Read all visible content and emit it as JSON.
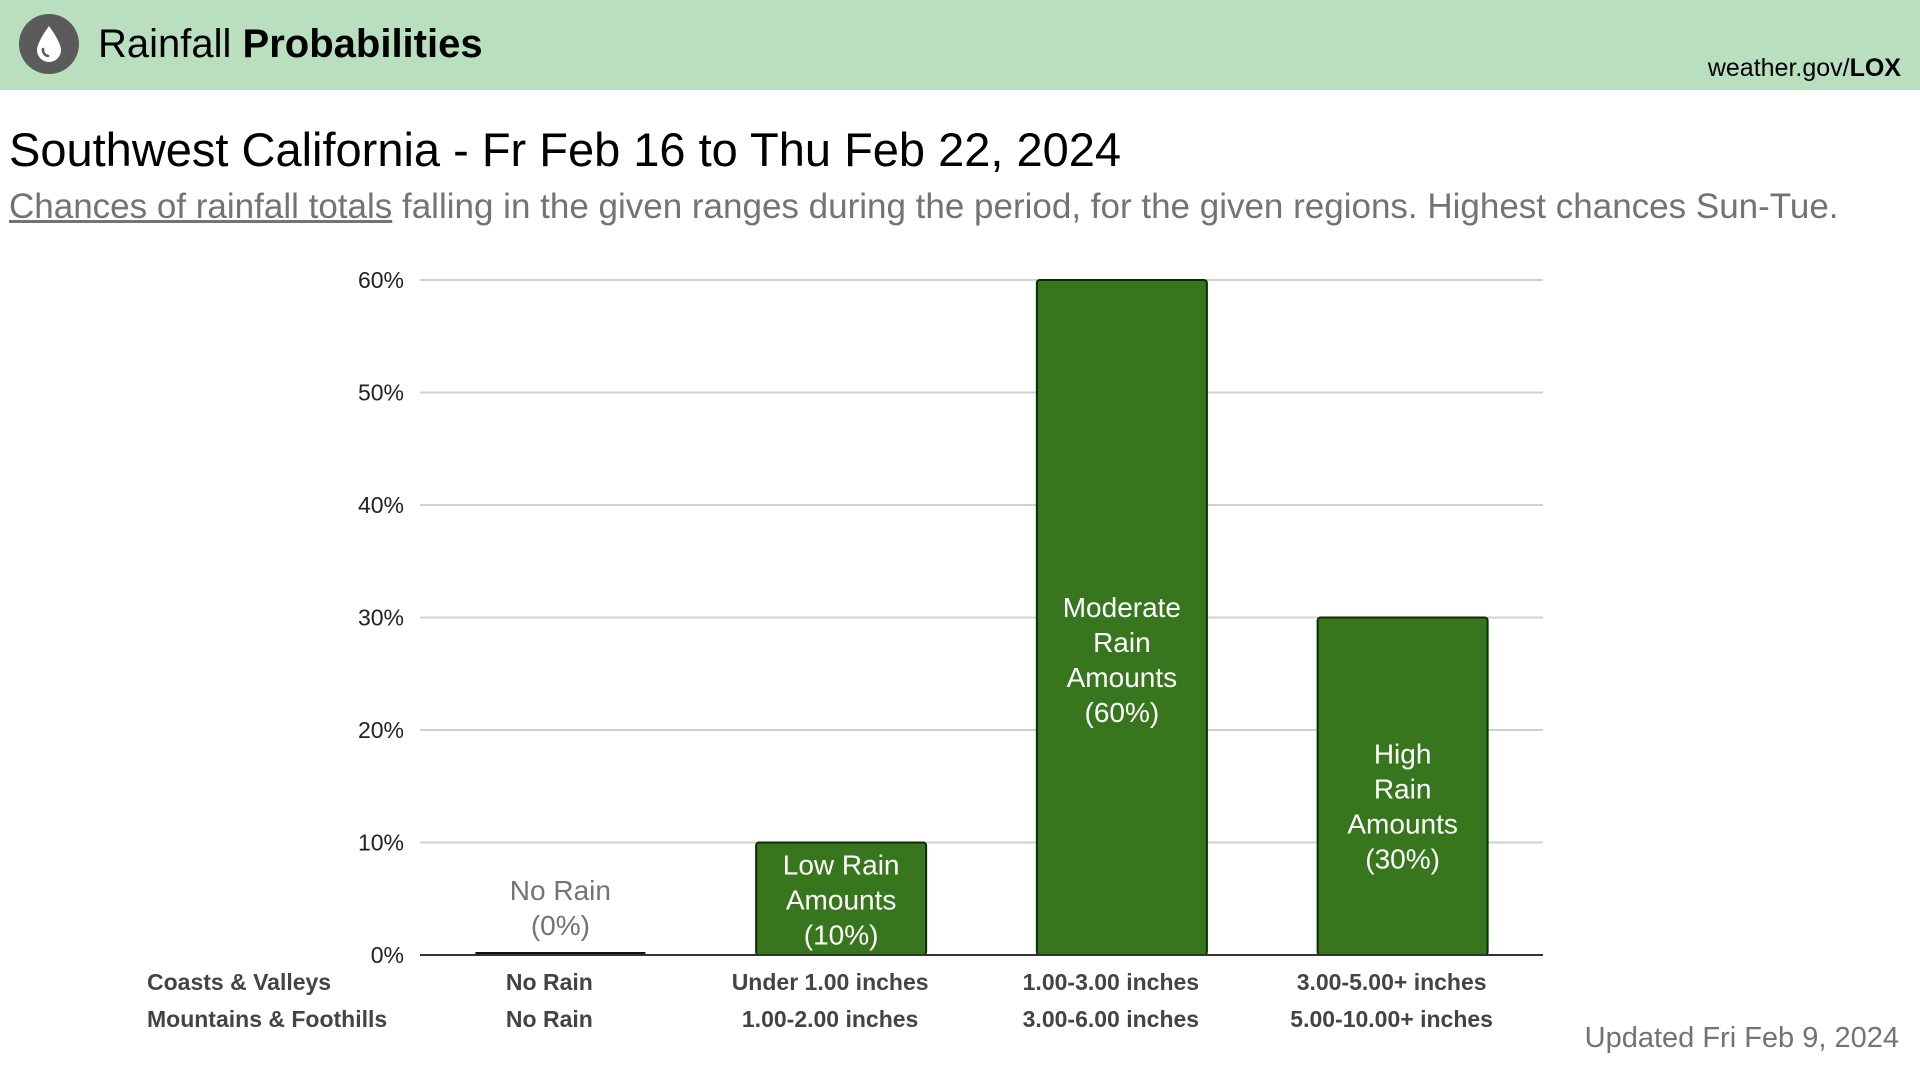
{
  "header": {
    "icon": "raindrop-icon",
    "title_prefix": "Rainfall",
    "title_bold": "Probabilities",
    "site_prefix": "weather.gov/",
    "site_bold": "LOX",
    "background": "#b9dfbf"
  },
  "page": {
    "title": "Southwest California - Fr Feb 16 to Thu Feb 22, 2024",
    "subtitle_link": "Chances of rainfall totals",
    "subtitle_rest": " falling in the given ranges during the period, for the given regions. Highest chances Sun-Tue.",
    "updated": "Updated Fri Feb 9, 2024"
  },
  "chart_data": {
    "type": "bar",
    "categories": [
      "No Rain",
      "Low Rain Amounts",
      "Moderate Rain Amounts",
      "High Rain Amounts"
    ],
    "values": [
      0,
      10,
      60,
      30
    ],
    "bar_labels": [
      [
        "No Rain",
        "(0%)"
      ],
      [
        "Low Rain",
        "Amounts",
        "(10%)"
      ],
      [
        "Moderate",
        "Rain",
        "Amounts",
        "(60%)"
      ],
      [
        "High",
        "Rain",
        "Amounts",
        "(30%)"
      ]
    ],
    "ylim": [
      0,
      60
    ],
    "yticks": [
      0,
      10,
      20,
      30,
      40,
      50,
      60
    ],
    "ytick_labels": [
      "0%",
      "10%",
      "20%",
      "30%",
      "40%",
      "50%",
      "60%"
    ],
    "grid": true,
    "bar_color": "#38761d",
    "region_rows": [
      {
        "label": "Coasts & Valleys",
        "values": [
          "No Rain",
          "Under 1.00 inches",
          "1.00-3.00 inches",
          "3.00-5.00+ inches"
        ]
      },
      {
        "label": "Mountains & Foothills",
        "values": [
          "No Rain",
          "1.00-2.00 inches",
          "3.00-6.00 inches",
          "5.00-10.00+ inches"
        ]
      }
    ]
  }
}
